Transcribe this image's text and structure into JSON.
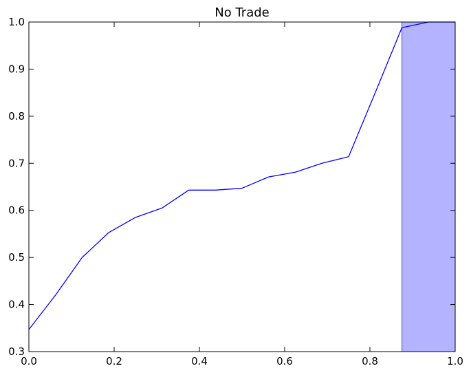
{
  "chart_data": {
    "type": "line",
    "title": "No Trade",
    "xlabel": "",
    "ylabel": "",
    "xlim": [
      0.0,
      1.0
    ],
    "ylim": [
      0.3,
      1.0
    ],
    "x_ticks": [
      "0.0",
      "0.2",
      "0.4",
      "0.6",
      "0.8",
      "1.0"
    ],
    "y_ticks": [
      "0.3",
      "0.4",
      "0.5",
      "0.6",
      "0.7",
      "0.8",
      "0.9",
      "1.0"
    ],
    "grid": false,
    "series": [
      {
        "color": "#0000ff",
        "x": [
          0.0,
          0.0625,
          0.125,
          0.1875,
          0.25,
          0.3125,
          0.375,
          0.4375,
          0.5,
          0.5625,
          0.625,
          0.6875,
          0.75,
          0.8125,
          0.875,
          0.9375,
          1.0
        ],
        "y": [
          0.347,
          0.42,
          0.5,
          0.553,
          0.585,
          0.605,
          0.643,
          0.643,
          0.647,
          0.671,
          0.681,
          0.7,
          0.714,
          0.85,
          0.988,
          1.0,
          1.0
        ]
      }
    ],
    "shaded_region": {
      "x_start": 0.875,
      "x_end": 1.0,
      "color": "#b3b3ff",
      "edge_color": "#7f7fcc"
    }
  }
}
